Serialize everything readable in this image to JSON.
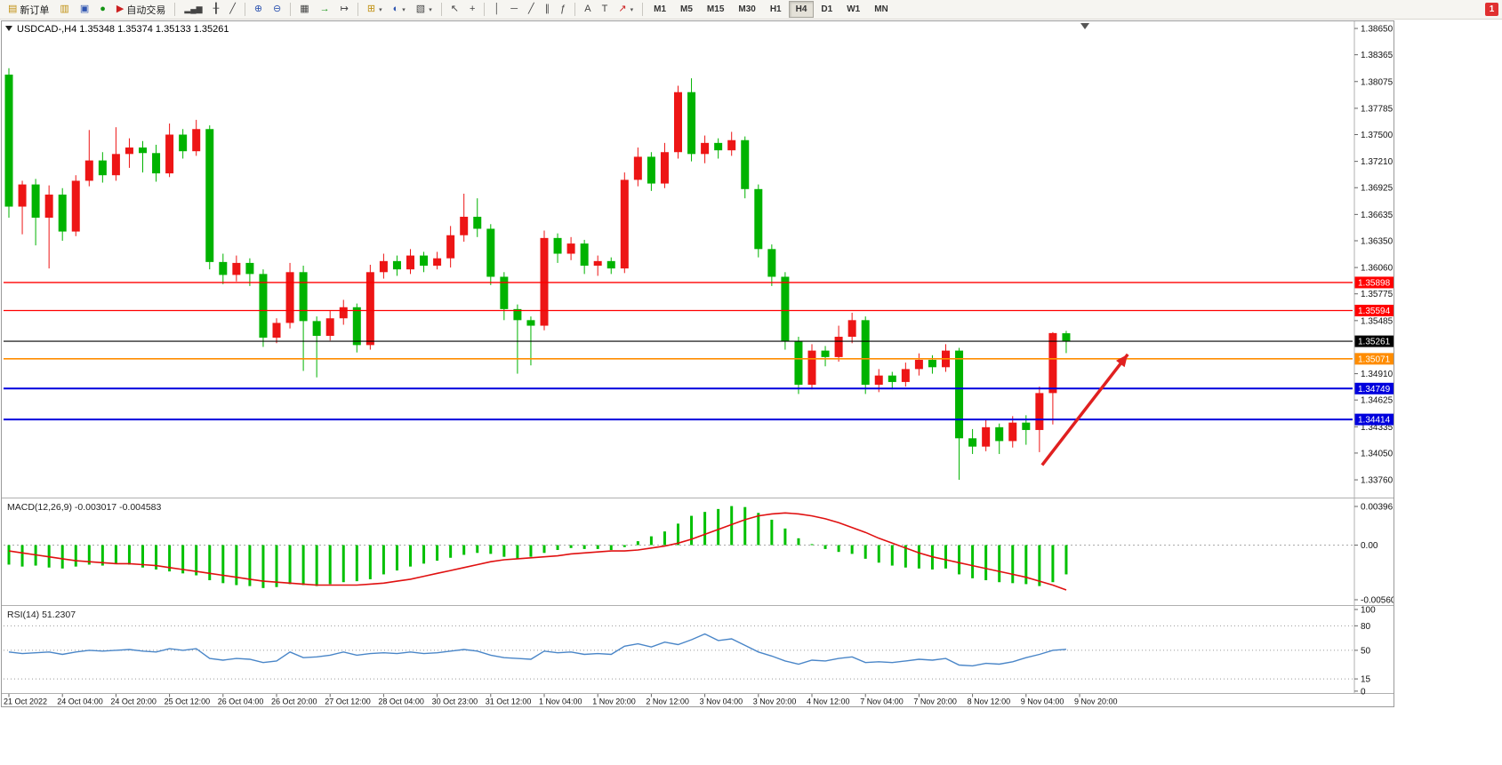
{
  "toolbar": {
    "new_order": "新订单",
    "autotrade": "自动交易",
    "timeframes": [
      "M1",
      "M5",
      "M15",
      "M30",
      "H1",
      "H4",
      "D1",
      "W1",
      "MN"
    ],
    "active_timeframe": "H4",
    "notification": "1",
    "icons": {
      "new_order": "▤",
      "market_watch": "▥",
      "data_window": "▣",
      "navigator": "●",
      "autotrade": "▶",
      "chart_bars": "▂▄▆",
      "chart_candles": "╂",
      "chart_line": "╱",
      "zoom_in": "⊕",
      "zoom_out": "⊖",
      "tile_windows": "▦",
      "auto_scroll": "→",
      "chart_shift": "↦",
      "new_chart": "⊞",
      "profiles": "◐",
      "templates": "▧",
      "cursor": "↖",
      "crosshair": "+",
      "vline": "│",
      "hline": "─",
      "trendline": "╱",
      "channel": "∥",
      "fibonacci": "ƒ",
      "text": "A",
      "label": "T",
      "arrows": "↗",
      "caret": "▾",
      "one_click": "▼"
    }
  },
  "chart": {
    "title_symbol": "USDCAD-,H4",
    "title_ohlc": "1.35348 1.35374 1.35133 1.35261"
  },
  "chart_data": {
    "type": "candlestick",
    "symbol": "USDCAD-",
    "period": "H4",
    "colors": {
      "up": "#ED1515",
      "down": "#00B300",
      "axis_text": "#111111"
    },
    "main_ylim": [
      1.33568,
      1.38708
    ],
    "price_ticks": [
      "1.38650",
      "1.38365",
      "1.38075",
      "1.37785",
      "1.37500",
      "1.37210",
      "1.36925",
      "1.36635",
      "1.36350",
      "1.36060",
      "1.35775",
      "1.35485",
      "1.34910",
      "1.34625",
      "1.34335",
      "1.34050",
      "1.33760"
    ],
    "time_labels": [
      "21 Oct 2022",
      "24 Oct 04:00",
      "24 Oct 20:00",
      "25 Oct 12:00",
      "26 Oct 04:00",
      "26 Oct 20:00",
      "27 Oct 12:00",
      "28 Oct 04:00",
      "30 Oct 23:00",
      "31 Oct 12:00",
      "1 Nov 04:00",
      "1 Nov 20:00",
      "2 Nov 12:00",
      "3 Nov 04:00",
      "3 Nov 20:00",
      "4 Nov 12:00",
      "7 Nov 04:00",
      "7 Nov 20:00",
      "8 Nov 12:00",
      "9 Nov 04:00",
      "9 Nov 20:00"
    ],
    "candles_ohlc": [
      [
        1.3815,
        1.3822,
        1.366,
        1.3672
      ],
      [
        1.3672,
        1.37,
        1.3642,
        1.3696
      ],
      [
        1.3696,
        1.3702,
        1.363,
        1.366
      ],
      [
        1.366,
        1.3695,
        1.3605,
        1.3685
      ],
      [
        1.3685,
        1.3692,
        1.3635,
        1.3645
      ],
      [
        1.3645,
        1.3706,
        1.364,
        1.37
      ],
      [
        1.37,
        1.3755,
        1.3694,
        1.3722
      ],
      [
        1.3722,
        1.3731,
        1.3698,
        1.3706
      ],
      [
        1.3706,
        1.3758,
        1.37,
        1.3729
      ],
      [
        1.3729,
        1.3746,
        1.3714,
        1.3736
      ],
      [
        1.3736,
        1.3743,
        1.3709,
        1.373
      ],
      [
        1.373,
        1.3739,
        1.3699,
        1.3708
      ],
      [
        1.3708,
        1.3762,
        1.3704,
        1.375
      ],
      [
        1.375,
        1.3756,
        1.3724,
        1.3732
      ],
      [
        1.3732,
        1.3766,
        1.3727,
        1.3756
      ],
      [
        1.3756,
        1.376,
        1.3604,
        1.3612
      ],
      [
        1.3612,
        1.3621,
        1.3588,
        1.3598
      ],
      [
        1.3598,
        1.3619,
        1.3591,
        1.3611
      ],
      [
        1.3611,
        1.3616,
        1.3586,
        1.3599
      ],
      [
        1.3599,
        1.3604,
        1.352,
        1.353
      ],
      [
        1.353,
        1.3551,
        1.3524,
        1.3546
      ],
      [
        1.3546,
        1.3611,
        1.354,
        1.3601
      ],
      [
        1.3601,
        1.3608,
        1.3494,
        1.3548
      ],
      [
        1.3548,
        1.3553,
        1.3487,
        1.3532
      ],
      [
        1.3532,
        1.3559,
        1.3527,
        1.3551
      ],
      [
        1.3551,
        1.3571,
        1.3544,
        1.3563
      ],
      [
        1.3563,
        1.3567,
        1.3514,
        1.3522
      ],
      [
        1.3522,
        1.3609,
        1.3517,
        1.3601
      ],
      [
        1.3601,
        1.3621,
        1.3594,
        1.3613
      ],
      [
        1.3613,
        1.3619,
        1.3597,
        1.3604
      ],
      [
        1.3604,
        1.3626,
        1.3599,
        1.3619
      ],
      [
        1.3619,
        1.3623,
        1.3601,
        1.3608
      ],
      [
        1.3608,
        1.3623,
        1.3604,
        1.3616
      ],
      [
        1.3616,
        1.3651,
        1.3606,
        1.3641
      ],
      [
        1.3641,
        1.3686,
        1.3634,
        1.3661
      ],
      [
        1.3661,
        1.3681,
        1.3639,
        1.3648
      ],
      [
        1.3648,
        1.3653,
        1.3587,
        1.3596
      ],
      [
        1.3596,
        1.3601,
        1.3549,
        1.3561
      ],
      [
        1.3561,
        1.3566,
        1.3491,
        1.3549
      ],
      [
        1.3549,
        1.3553,
        1.35,
        1.3543
      ],
      [
        1.3543,
        1.3646,
        1.3538,
        1.3638
      ],
      [
        1.3638,
        1.3643,
        1.3611,
        1.3621
      ],
      [
        1.3621,
        1.3639,
        1.3614,
        1.3632
      ],
      [
        1.3632,
        1.3636,
        1.3599,
        1.3608
      ],
      [
        1.3608,
        1.3619,
        1.3597,
        1.3613
      ],
      [
        1.3613,
        1.3617,
        1.3599,
        1.3605
      ],
      [
        1.3605,
        1.3709,
        1.36,
        1.3701
      ],
      [
        1.3701,
        1.3736,
        1.3694,
        1.3726
      ],
      [
        1.3726,
        1.3731,
        1.3689,
        1.3697
      ],
      [
        1.3697,
        1.3741,
        1.3692,
        1.3731
      ],
      [
        1.3731,
        1.3803,
        1.3724,
        1.3796
      ],
      [
        1.3796,
        1.3811,
        1.3721,
        1.3729
      ],
      [
        1.3729,
        1.3749,
        1.3719,
        1.3741
      ],
      [
        1.3741,
        1.3746,
        1.3724,
        1.3733
      ],
      [
        1.3733,
        1.3753,
        1.3727,
        1.3744
      ],
      [
        1.3744,
        1.3748,
        1.3681,
        1.3691
      ],
      [
        1.3691,
        1.3696,
        1.3617,
        1.3626
      ],
      [
        1.3626,
        1.3631,
        1.3586,
        1.3596
      ],
      [
        1.3596,
        1.3601,
        1.3517,
        1.3526
      ],
      [
        1.3526,
        1.3531,
        1.3469,
        1.3479
      ],
      [
        1.3479,
        1.3523,
        1.3474,
        1.3516
      ],
      [
        1.3516,
        1.3521,
        1.3499,
        1.3509
      ],
      [
        1.3509,
        1.3543,
        1.3504,
        1.3531
      ],
      [
        1.3531,
        1.3557,
        1.3524,
        1.3549
      ],
      [
        1.3549,
        1.3553,
        1.3469,
        1.3479
      ],
      [
        1.3479,
        1.3496,
        1.3471,
        1.3489
      ],
      [
        1.3489,
        1.3493,
        1.3474,
        1.3482
      ],
      [
        1.3482,
        1.3503,
        1.3477,
        1.3496
      ],
      [
        1.3496,
        1.3513,
        1.3489,
        1.3506
      ],
      [
        1.3506,
        1.3511,
        1.3491,
        1.3498
      ],
      [
        1.3498,
        1.3523,
        1.3493,
        1.3516
      ],
      [
        1.3516,
        1.3519,
        1.3376,
        1.3421
      ],
      [
        1.3421,
        1.3431,
        1.3404,
        1.3412
      ],
      [
        1.3412,
        1.3441,
        1.3407,
        1.3433
      ],
      [
        1.3433,
        1.3437,
        1.3404,
        1.3418
      ],
      [
        1.3418,
        1.3445,
        1.3411,
        1.3438
      ],
      [
        1.3438,
        1.3446,
        1.3414,
        1.343
      ],
      [
        1.343,
        1.3477,
        1.3406,
        1.347
      ],
      [
        1.347,
        1.3536,
        1.3436,
        1.3535
      ],
      [
        1.35348,
        1.35374,
        1.35133,
        1.35261
      ]
    ],
    "hlines": [
      {
        "name": "resistance-upper",
        "price": 1.35898,
        "label": "1.35898",
        "color": "#FF0000",
        "width": 1.3
      },
      {
        "name": "resistance-lower",
        "price": 1.35594,
        "label": "1.35594",
        "color": "#FF0000",
        "width": 1.3
      },
      {
        "name": "current-price",
        "price": 1.35261,
        "label": "1.35261",
        "color": "#000000",
        "width": 1.1
      },
      {
        "name": "pivot-orange",
        "price": 1.35071,
        "label": "1.35071",
        "color": "#FF8C00",
        "width": 1.6
      },
      {
        "name": "support-upper",
        "price": 1.34749,
        "label": "1.34749",
        "color": "#0000DD",
        "width": 2
      },
      {
        "name": "support-lower",
        "price": 1.34414,
        "label": "1.34414",
        "color": "#0000DD",
        "width": 2
      }
    ],
    "arrow": {
      "from_candle": 77.2,
      "from_price": 1.3392,
      "to_candle": 83.6,
      "to_price": 1.3512,
      "color": "#E02020"
    },
    "shift_marker_candle": 80.4,
    "indicators": [
      {
        "type": "macd",
        "label": "MACD(12,26,9) -0.003017 -0.004583",
        "params": [
          12,
          26,
          9
        ],
        "axis_labels": [
          "0.003961",
          "0.00",
          "-0.005601"
        ],
        "ylim": [
          -0.006147,
          0.004781
        ],
        "colors": {
          "histogram": "#00C000",
          "signal": "#E01010"
        },
        "histogram": [
          -0.002,
          -0.0022,
          -0.0021,
          -0.0023,
          -0.0024,
          -0.0022,
          -0.002,
          -0.0021,
          -0.0019,
          -0.002,
          -0.0023,
          -0.0025,
          -0.0027,
          -0.0029,
          -0.0031,
          -0.0036,
          -0.0039,
          -0.0041,
          -0.0042,
          -0.0044,
          -0.0043,
          -0.004,
          -0.0041,
          -0.0042,
          -0.004,
          -0.0038,
          -0.0037,
          -0.0035,
          -0.003,
          -0.0026,
          -0.0022,
          -0.0019,
          -0.0016,
          -0.0013,
          -0.001,
          -0.0008,
          -0.0009,
          -0.0012,
          -0.0014,
          -0.0012,
          -0.0008,
          -0.0005,
          -0.0003,
          -0.0004,
          -0.0004,
          -0.0005,
          -0.0002,
          0.0004,
          0.0009,
          0.0014,
          0.0022,
          0.003,
          0.0034,
          0.0037,
          0.004,
          0.0039,
          0.0033,
          0.0026,
          0.0017,
          0.0007,
          0.0001,
          -0.0004,
          -0.0007,
          -0.0009,
          -0.0014,
          -0.0018,
          -0.0021,
          -0.0023,
          -0.0024,
          -0.0025,
          -0.0024,
          -0.003,
          -0.0034,
          -0.0036,
          -0.0038,
          -0.0039,
          -0.004,
          -0.0042,
          -0.0038,
          -0.003
        ],
        "signal": [
          -0.0006,
          -0.0008,
          -0.001,
          -0.0012,
          -0.0014,
          -0.0016,
          -0.0017,
          -0.0018,
          -0.0019,
          -0.0019,
          -0.002,
          -0.0021,
          -0.0023,
          -0.0025,
          -0.0027,
          -0.0029,
          -0.0031,
          -0.0033,
          -0.0035,
          -0.0037,
          -0.0038,
          -0.0039,
          -0.004,
          -0.0041,
          -0.0041,
          -0.0041,
          -0.0041,
          -0.004,
          -0.0039,
          -0.0037,
          -0.0035,
          -0.0032,
          -0.0029,
          -0.0026,
          -0.0023,
          -0.002,
          -0.0017,
          -0.0015,
          -0.0014,
          -0.0013,
          -0.0012,
          -0.0011,
          -0.0009,
          -0.0008,
          -0.0007,
          -0.0006,
          -0.0006,
          -0.0005,
          -0.0003,
          -0.0001,
          0.0002,
          0.0006,
          0.0011,
          0.0016,
          0.0021,
          0.0026,
          0.003,
          0.0032,
          0.0033,
          0.0032,
          0.003,
          0.0027,
          0.0023,
          0.0018,
          0.0013,
          0.0007,
          0.0002,
          -0.0003,
          -0.0008,
          -0.0012,
          -0.0015,
          -0.0018,
          -0.0021,
          -0.0024,
          -0.0027,
          -0.003,
          -0.0033,
          -0.0037,
          -0.0041,
          -0.0046
        ]
      },
      {
        "type": "rsi",
        "label": "RSI(14) 51.2307",
        "period": 14,
        "axis_labels": [
          "100",
          "80",
          "50",
          "15",
          "0"
        ],
        "levels": [
          80,
          50,
          15
        ],
        "ylim": [
          -2.3,
          104.3
        ],
        "color": "#4A86C8",
        "values": [
          48,
          46,
          47,
          48,
          45,
          48,
          50,
          49,
          50,
          51,
          49,
          48,
          52,
          50,
          52,
          40,
          38,
          40,
          39,
          35,
          37,
          48,
          41,
          42,
          44,
          48,
          44,
          46,
          47,
          46,
          48,
          46,
          47,
          49,
          51,
          49,
          44,
          41,
          40,
          39,
          49,
          47,
          48,
          45,
          46,
          45,
          55,
          58,
          54,
          60,
          57,
          63,
          70,
          62,
          64,
          56,
          48,
          43,
          37,
          33,
          38,
          37,
          40,
          42,
          35,
          36,
          35,
          37,
          39,
          38,
          40,
          32,
          31,
          34,
          33,
          36,
          41,
          45,
          50,
          51.23
        ]
      }
    ]
  }
}
